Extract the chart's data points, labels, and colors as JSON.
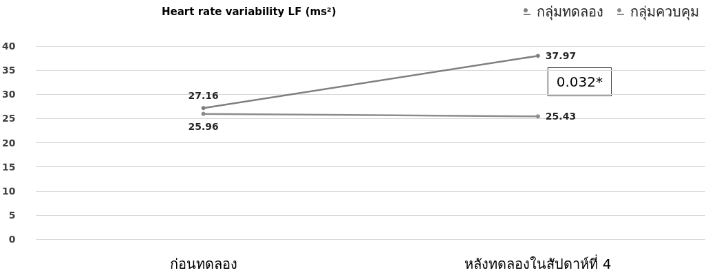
{
  "chart_data": {
    "type": "line",
    "title": "Heart rate variability LF (ms²)",
    "categories": [
      "ก่อนทดลอง",
      "หลังทดลองในสัปดาห์ที่ 4"
    ],
    "series": [
      {
        "name": "กลุ่มทดลอง",
        "color": "#7f7f7f",
        "values": [
          27.16,
          37.97
        ]
      },
      {
        "name": "กลุ่มควบคุม",
        "color": "#8c8c8c",
        "values": [
          25.96,
          25.43
        ]
      }
    ],
    "ylim": [
      0,
      40
    ],
    "yticks": [
      0,
      5,
      10,
      15,
      20,
      25,
      30,
      35,
      40
    ],
    "grid": "y",
    "legend": "top right",
    "marker": "circle",
    "line_style": "solid",
    "data_labels": true,
    "annotations": [
      "0.032*"
    ]
  }
}
